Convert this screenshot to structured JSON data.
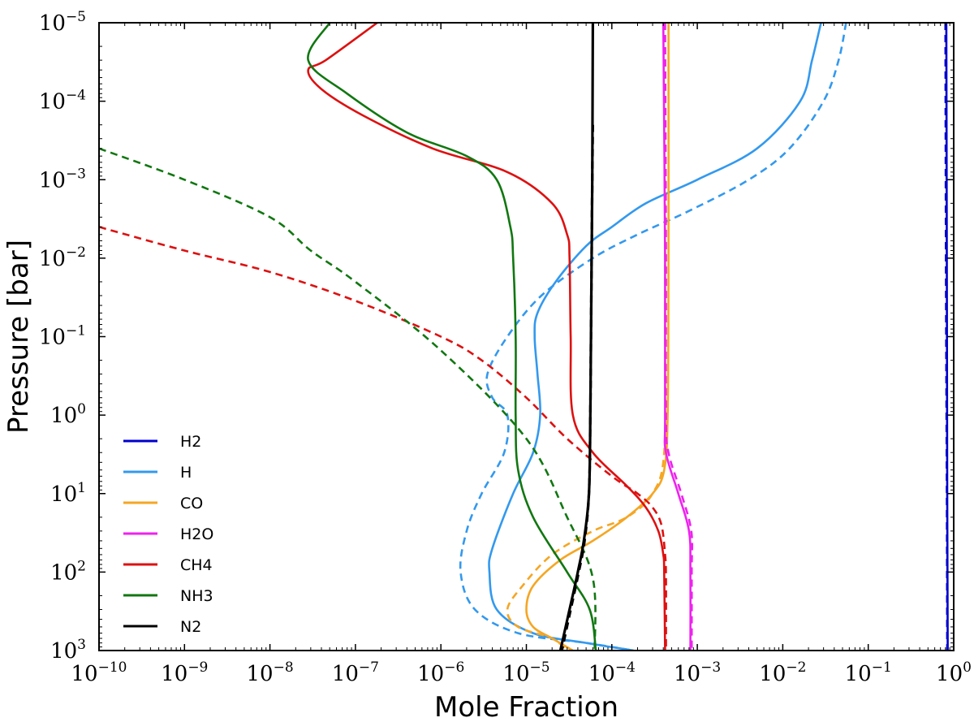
{
  "chart_data": {
    "type": "line",
    "title": "",
    "xlabel": "Mole Fraction",
    "ylabel": "Pressure [bar]",
    "xscale": "log",
    "yscale": "log",
    "y_inverted": true,
    "xlim": [
      1e-10,
      1
    ],
    "ylim": [
      1e-05,
      1000
    ],
    "grid": false,
    "legend_position": "lower-left",
    "x_ticks": [
      {
        "base": "10",
        "exp": "−10",
        "value": 1e-10
      },
      {
        "base": "10",
        "exp": "−9",
        "value": 1e-09
      },
      {
        "base": "10",
        "exp": "−8",
        "value": 1e-08
      },
      {
        "base": "10",
        "exp": "−7",
        "value": 1e-07
      },
      {
        "base": "10",
        "exp": "−6",
        "value": 1e-06
      },
      {
        "base": "10",
        "exp": "−5",
        "value": 1e-05
      },
      {
        "base": "10",
        "exp": "−4",
        "value": 0.0001
      },
      {
        "base": "10",
        "exp": "−3",
        "value": 0.001
      },
      {
        "base": "10",
        "exp": "−2",
        "value": 0.01
      },
      {
        "base": "10",
        "exp": "−1",
        "value": 0.1
      },
      {
        "base": "10",
        "exp": "0",
        "value": 1
      }
    ],
    "y_ticks": [
      {
        "base": "10",
        "exp": "−5",
        "value": 1e-05
      },
      {
        "base": "10",
        "exp": "−4",
        "value": 0.0001
      },
      {
        "base": "10",
        "exp": "−3",
        "value": 0.001
      },
      {
        "base": "10",
        "exp": "−2",
        "value": 0.01
      },
      {
        "base": "10",
        "exp": "−1",
        "value": 0.1
      },
      {
        "base": "10",
        "exp": "0",
        "value": 1
      },
      {
        "base": "10",
        "exp": "1",
        "value": 10
      },
      {
        "base": "10",
        "exp": "2",
        "value": 100
      },
      {
        "base": "10",
        "exp": "3",
        "value": 1000
      }
    ],
    "series": [
      {
        "name": "H2",
        "color": "#0000cc",
        "style": "solid",
        "in_legend": true,
        "points": [
          [
            0.82,
            1e-05
          ],
          [
            0.83,
            0.01
          ],
          [
            0.84,
            10
          ],
          [
            0.85,
            1000
          ]
        ]
      },
      {
        "name": "H2",
        "color": "#0000cc",
        "style": "dashed",
        "in_legend": false,
        "points": [
          [
            0.8,
            1e-05
          ],
          [
            0.81,
            0.01
          ],
          [
            0.83,
            10
          ],
          [
            0.84,
            1000
          ]
        ]
      },
      {
        "name": "H",
        "color": "#3399ee",
        "style": "solid",
        "in_legend": true,
        "points": [
          [
            0.028,
            1e-05
          ],
          [
            0.022,
            3e-05
          ],
          [
            0.016,
            0.0001
          ],
          [
            0.005,
            0.0004
          ],
          [
            0.001,
            0.001
          ],
          [
            0.00025,
            0.002
          ],
          [
            0.0001,
            0.004
          ],
          [
            5e-05,
            0.007
          ],
          [
            2.2e-05,
            0.02
          ],
          [
            1.35e-05,
            0.05
          ],
          [
            1.25e-05,
            0.1
          ],
          [
            1.35e-05,
            0.3
          ],
          [
            1.45e-05,
            1
          ],
          [
            1.2e-05,
            3
          ],
          [
            7e-06,
            10
          ],
          [
            4e-06,
            50
          ],
          [
            3.7e-06,
            100
          ],
          [
            4.5e-06,
            300
          ],
          [
            1.2e-05,
            600
          ],
          [
            5e-05,
            800
          ],
          [
            0.00018,
            1000
          ]
        ]
      },
      {
        "name": "H",
        "color": "#3399ee",
        "style": "dashed",
        "in_legend": true,
        "points": [
          [
            0.055,
            1e-05
          ],
          [
            0.045,
            3e-05
          ],
          [
            0.03,
            0.0001
          ],
          [
            0.012,
            0.0004
          ],
          [
            0.004,
            0.001
          ],
          [
            0.0008,
            0.0025
          ],
          [
            0.0002,
            0.005
          ],
          [
            6e-05,
            0.01
          ],
          [
            1.5e-05,
            0.03
          ],
          [
            6e-06,
            0.1
          ],
          [
            3.5e-06,
            0.3
          ],
          [
            4e-06,
            0.6
          ],
          [
            6e-06,
            1
          ],
          [
            5.5e-06,
            3
          ],
          [
            3e-06,
            10
          ],
          [
            2e-06,
            30
          ],
          [
            1.7e-06,
            100
          ],
          [
            2.5e-06,
            300
          ],
          [
            8e-06,
            600
          ],
          [
            5e-05,
            800
          ],
          [
            0.00018,
            1000
          ]
        ]
      },
      {
        "name": "CO",
        "color": "#f5a623",
        "style": "solid",
        "in_legend": true,
        "points": [
          [
            0.00046,
            1e-05
          ],
          [
            0.00046,
            0.01
          ],
          [
            0.00045,
            1
          ],
          [
            0.00041,
            5
          ],
          [
            0.0003,
            10
          ],
          [
            0.00015,
            20
          ],
          [
            6e-05,
            40
          ],
          [
            2.5e-05,
            70
          ],
          [
            1.2e-05,
            150
          ],
          [
            1e-05,
            300
          ],
          [
            1.2e-05,
            500
          ],
          [
            2e-05,
            700
          ],
          [
            3.5e-05,
            1000
          ]
        ]
      },
      {
        "name": "CO",
        "color": "#f5a623",
        "style": "dashed",
        "in_legend": true,
        "points": [
          [
            0.00042,
            0.001
          ],
          [
            0.00042,
            0.1
          ],
          [
            0.00041,
            3
          ],
          [
            0.0003,
            10
          ],
          [
            0.00015,
            20
          ],
          [
            6e-05,
            30
          ],
          [
            2e-05,
            60
          ],
          [
            9e-06,
            150
          ],
          [
            6e-06,
            300
          ],
          [
            8e-06,
            500
          ],
          [
            2e-05,
            700
          ],
          [
            3e-05,
            1000
          ]
        ]
      },
      {
        "name": "H2O",
        "color": "#ee22ee",
        "style": "solid",
        "in_legend": true,
        "points": [
          [
            0.0004,
            1e-05
          ],
          [
            0.00042,
            0.01
          ],
          [
            0.00042,
            1
          ],
          [
            0.00043,
            3
          ],
          [
            0.0006,
            10
          ],
          [
            0.0008,
            30
          ],
          [
            0.00083,
            100
          ],
          [
            0.00083,
            1000
          ]
        ]
      },
      {
        "name": "H2O",
        "color": "#ee22ee",
        "style": "dashed",
        "in_legend": true,
        "points": [
          [
            0.00042,
            1e-05
          ],
          [
            0.00043,
            0.01
          ],
          [
            0.00043,
            1
          ],
          [
            0.00046,
            3
          ],
          [
            0.00065,
            10
          ],
          [
            0.00085,
            30
          ],
          [
            0.00086,
            100
          ],
          [
            0.00086,
            1000
          ]
        ]
      },
      {
        "name": "CH4",
        "color": "#dd1111",
        "style": "solid",
        "in_legend": true,
        "points": [
          [
            1.8e-07,
            1e-05
          ],
          [
            4.5e-08,
            3e-05
          ],
          [
            2.8e-08,
            4e-05
          ],
          [
            4e-08,
            7e-05
          ],
          [
            1.2e-07,
            0.00015
          ],
          [
            8e-07,
            0.0004
          ],
          [
            6e-06,
            0.0008
          ],
          [
            2e-05,
            0.002
          ],
          [
            3e-05,
            0.005
          ],
          [
            3.2e-05,
            0.01
          ],
          [
            3.3e-05,
            0.1
          ],
          [
            3.5e-05,
            1
          ],
          [
            6e-05,
            3
          ],
          [
            0.00015,
            8
          ],
          [
            0.00025,
            15
          ],
          [
            0.00035,
            30
          ],
          [
            0.0004,
            60
          ],
          [
            0.00041,
            100
          ],
          [
            0.00042,
            1000
          ]
        ]
      },
      {
        "name": "CH4",
        "color": "#dd1111",
        "style": "dashed",
        "in_legend": true,
        "points": [
          [
            1e-10,
            0.004
          ],
          [
            1e-09,
            0.008
          ],
          [
            1e-08,
            0.015
          ],
          [
            1e-07,
            0.035
          ],
          [
            1e-06,
            0.1
          ],
          [
            3e-06,
            0.2
          ],
          [
            1e-05,
            0.6
          ],
          [
            3e-05,
            2
          ],
          [
            0.0001,
            6
          ],
          [
            0.0002,
            10
          ],
          [
            0.0003,
            15
          ],
          [
            0.00038,
            25
          ],
          [
            0.00042,
            60
          ],
          [
            0.00043,
            120
          ],
          [
            0.00043,
            1000
          ]
        ]
      },
      {
        "name": "NH3",
        "color": "#117711",
        "style": "solid",
        "in_legend": true,
        "points": [
          [
            5e-08,
            1e-05
          ],
          [
            2.8e-08,
            3e-05
          ],
          [
            8e-08,
            8e-05
          ],
          [
            4e-07,
            0.00025
          ],
          [
            2e-06,
            0.0005
          ],
          [
            4.5e-06,
            0.001
          ],
          [
            6.5e-06,
            0.004
          ],
          [
            7e-06,
            0.01
          ],
          [
            7.5e-06,
            0.1
          ],
          [
            7.5e-06,
            1
          ],
          [
            8e-06,
            5
          ],
          [
            1.2e-05,
            20
          ],
          [
            3e-05,
            100
          ],
          [
            5.5e-05,
            300
          ],
          [
            6.5e-05,
            1000
          ]
        ]
      },
      {
        "name": "NH3",
        "color": "#117711",
        "style": "dashed",
        "in_legend": true,
        "points": [
          [
            1e-10,
            0.0004
          ],
          [
            1e-09,
            0.001
          ],
          [
            1e-08,
            0.003
          ],
          [
            3e-08,
            0.008
          ],
          [
            1e-07,
            0.02
          ],
          [
            1e-06,
            0.15
          ],
          [
            1e-05,
            2
          ],
          [
            3e-05,
            20
          ],
          [
            6e-05,
            120
          ],
          [
            6.3e-05,
            1000
          ]
        ]
      },
      {
        "name": "N2",
        "color": "#000000",
        "style": "solid",
        "in_legend": true,
        "points": [
          [
            6e-05,
            1e-05
          ],
          [
            5.9e-05,
            0.001
          ],
          [
            5.8e-05,
            0.01
          ],
          [
            5.7e-05,
            0.1
          ],
          [
            5.6e-05,
            1
          ],
          [
            5.4e-05,
            10
          ],
          [
            4.7e-05,
            40
          ],
          [
            4e-05,
            100
          ],
          [
            3.2e-05,
            300
          ],
          [
            2.5e-05,
            1000
          ]
        ]
      },
      {
        "name": "N2",
        "color": "#000000",
        "style": "dashed",
        "in_legend": true,
        "points": [
          [
            6e-05,
            0.0002
          ],
          [
            5.9e-05,
            0.001
          ],
          [
            5.8e-05,
            0.01
          ],
          [
            5.7e-05,
            0.1
          ],
          [
            5.6e-05,
            1
          ],
          [
            5.4e-05,
            10
          ],
          [
            4.8e-05,
            40
          ],
          [
            4.1e-05,
            100
          ],
          [
            3.3e-05,
            300
          ],
          [
            2.6e-05,
            1000
          ]
        ]
      }
    ],
    "legend": [
      {
        "label": "H2",
        "color": "#0000cc"
      },
      {
        "label": "H",
        "color": "#3399ee"
      },
      {
        "label": "CO",
        "color": "#f5a623"
      },
      {
        "label": "H2O",
        "color": "#ee22ee"
      },
      {
        "label": "CH4",
        "color": "#dd1111"
      },
      {
        "label": "NH3",
        "color": "#117711"
      },
      {
        "label": "N2",
        "color": "#000000"
      }
    ]
  }
}
